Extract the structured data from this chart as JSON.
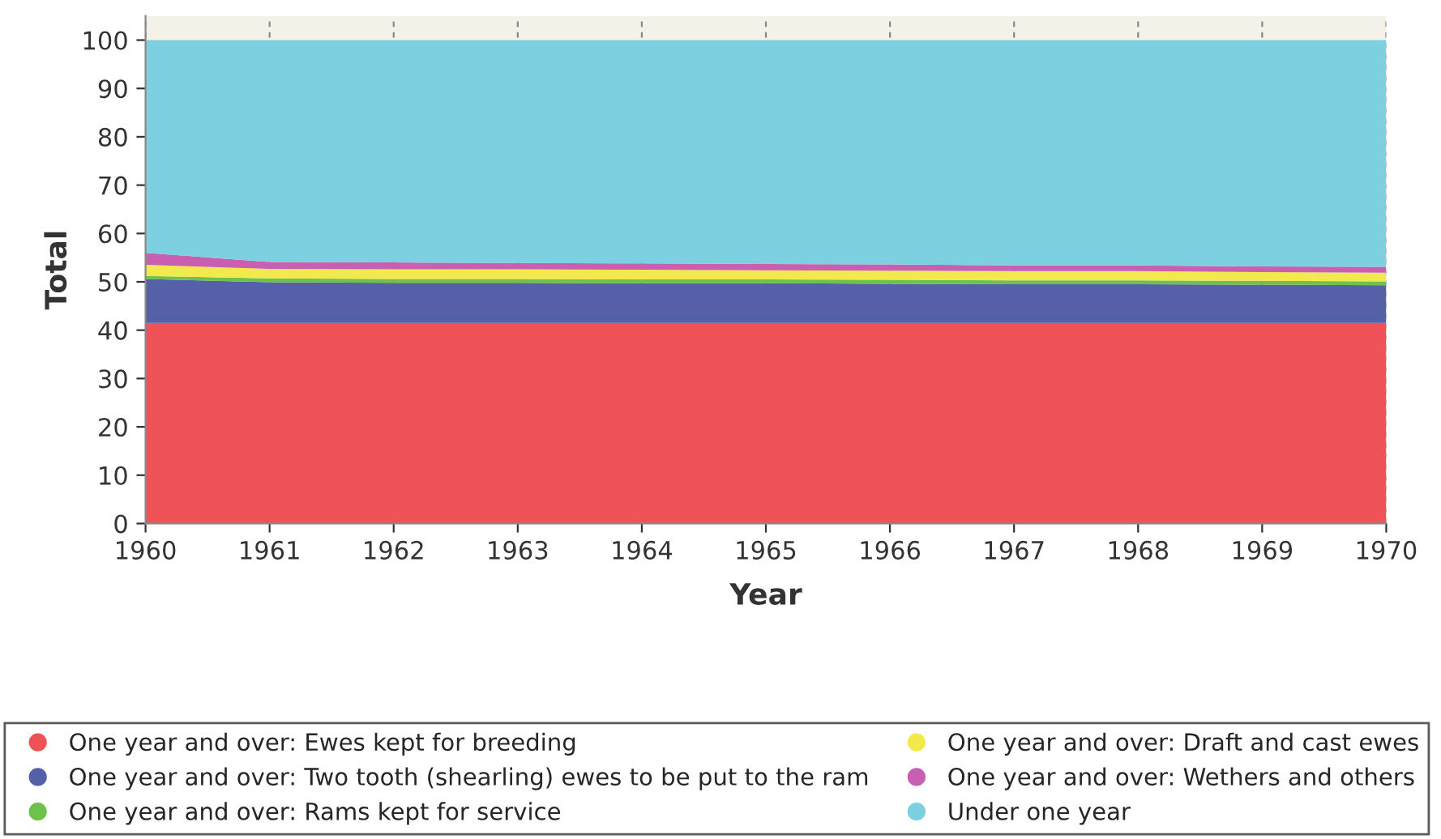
{
  "chart_data": {
    "type": "area",
    "stacked": true,
    "xlabel": "Year",
    "ylabel": "Total",
    "x": [
      1960,
      1961,
      1962,
      1963,
      1964,
      1965,
      1966,
      1967,
      1968,
      1969,
      1970
    ],
    "series": [
      {
        "name": "One year and over: Ewes kept for breeding",
        "color": "#ef5357",
        "values": [
          41.5,
          41.5,
          41.5,
          41.5,
          41.5,
          41.5,
          41.5,
          41.5,
          41.5,
          41.5,
          41.5
        ]
      },
      {
        "name": "One year and over: Two tooth (shearling) ewes to be put to the ram",
        "color": "#5560a8",
        "values": [
          9.1,
          8.4,
          8.3,
          8.3,
          8.2,
          8.2,
          8.1,
          8.0,
          8.0,
          7.9,
          7.8
        ]
      },
      {
        "name": "One year and over: Rams kept for service",
        "color": "#6cc24a",
        "values": [
          0.6,
          0.8,
          0.8,
          0.8,
          0.8,
          0.8,
          0.8,
          0.8,
          0.8,
          0.8,
          0.8
        ]
      },
      {
        "name": "One year and over: Draft and cast ewes",
        "color": "#f2e94e",
        "values": [
          2.3,
          2.0,
          2.0,
          2.0,
          2.0,
          1.9,
          1.9,
          1.9,
          1.9,
          1.8,
          1.8
        ]
      },
      {
        "name": "One year and over: Wethers and others",
        "color": "#c95fb0",
        "values": [
          2.5,
          1.4,
          1.4,
          1.3,
          1.3,
          1.3,
          1.3,
          1.2,
          1.2,
          1.2,
          1.2
        ]
      },
      {
        "name": "Under one year",
        "color": "#7dd0e0",
        "values": [
          44.0,
          45.9,
          46.0,
          46.1,
          46.2,
          46.3,
          46.4,
          46.6,
          46.6,
          46.8,
          46.9
        ]
      }
    ],
    "xlim": [
      1960,
      1970
    ],
    "xticks": [
      1960,
      1961,
      1962,
      1963,
      1964,
      1965,
      1966,
      1967,
      1968,
      1969,
      1970
    ],
    "ylim": [
      0,
      105
    ],
    "yticks": [
      0,
      10,
      20,
      30,
      40,
      50,
      60,
      70,
      80,
      90,
      100
    ],
    "grid": "x",
    "legend": "bottom"
  }
}
